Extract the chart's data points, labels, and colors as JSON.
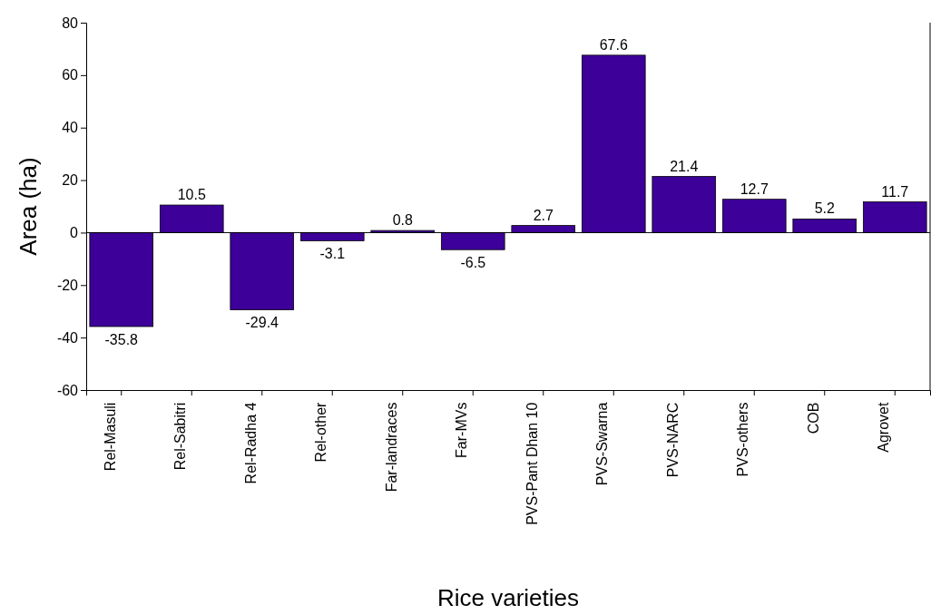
{
  "chart_data": {
    "type": "bar",
    "xlabel": "Rice varieties",
    "ylabel": "Area (ha)",
    "categories": [
      "Rel-Masuli",
      "Rel-Sabitri",
      "Rel-Radha 4",
      "Rel-other",
      "Far-landraces",
      "Far-MVs",
      "PVS-Pant Dhan 10",
      "PVS-Swarna",
      "PVS-NARC",
      "PVS-others",
      "COB",
      "Agrovet"
    ],
    "values": [
      -35.8,
      10.5,
      -29.4,
      -3.1,
      0.8,
      -6.5,
      2.7,
      67.6,
      21.4,
      12.7,
      5.2,
      11.7
    ],
    "color": "#3d0099",
    "ylim": [
      -60,
      80
    ],
    "yticks": [
      -60,
      -40,
      -20,
      0,
      20,
      40,
      60,
      80
    ],
    "ref_lines": [
      {
        "axis": "y",
        "value": 0,
        "color": "#000000"
      }
    ],
    "data_labels": true,
    "grid": false
  }
}
